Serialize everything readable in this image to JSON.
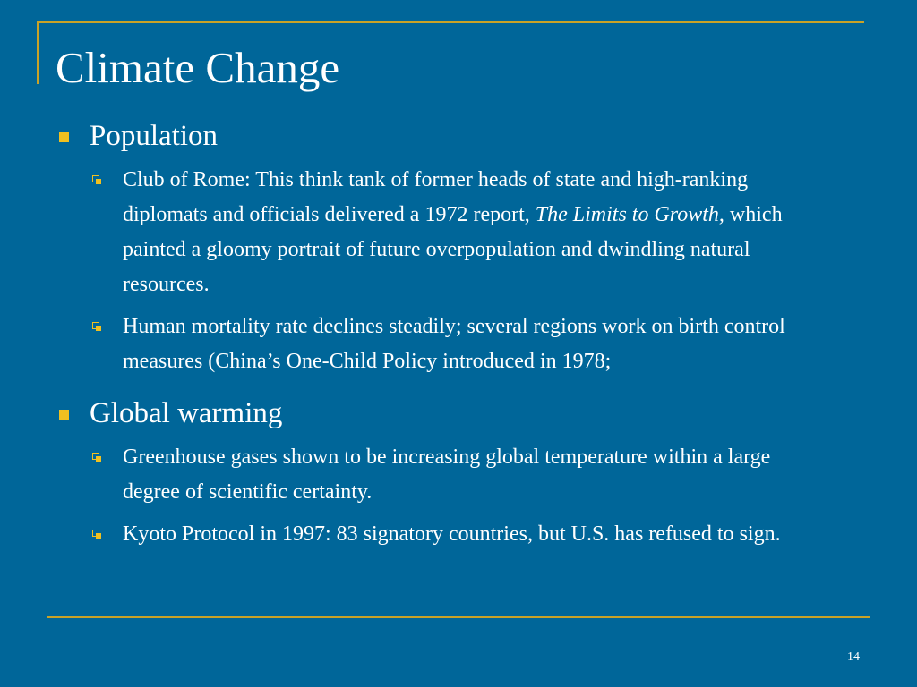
{
  "slide": {
    "title": "Climate Change",
    "page_number": "14",
    "sections": [
      {
        "heading": "Population",
        "items": [
          {
            "pre": "Club of Rome: This think tank of former heads of state and high-ranking diplomats and officials delivered a 1972 report, ",
            "italic": "The Limits to Growth,",
            "post": " which painted a gloomy portrait of future overpopulation and dwindling natural resources."
          },
          {
            "text": "Human mortality rate declines steadily; several regions work on birth control measures (China’s One-Child Policy introduced in 1978;"
          }
        ]
      },
      {
        "heading": "Global warming",
        "items": [
          {
            "text": "Greenhouse gases shown to be increasing global temperature within a large degree of scientific certainty."
          },
          {
            "text": "Kyoto Protocol in 1997: 83 signatory countries, but U.S. has refused to sign."
          }
        ]
      }
    ]
  },
  "colors": {
    "background": "#006699",
    "accent": "#c9a227",
    "bullet": "#f0c020",
    "text": "#ffffff"
  },
  "icons": {
    "level1_bullet": "filled-square-bullet-icon",
    "level2_bullet": "hollow-square-bullet-icon"
  }
}
